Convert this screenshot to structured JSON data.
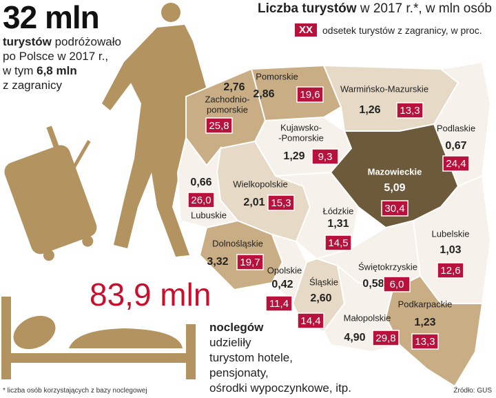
{
  "headline": "32 mln",
  "intro": {
    "line1_bold": "turystów",
    "line1_rest": "podróżowało",
    "line2": "po Polsce w 2017 r.,",
    "line3_pre": "w tym",
    "line3_bold": "6,8 mln",
    "line4": "z zagranicy"
  },
  "title": {
    "bold": "Liczba turystów",
    "rest": "w 2017 r.*, w mln osób"
  },
  "legend": {
    "box": "XX",
    "text": "odsetek turystów z zagranicy, w proc."
  },
  "regions": [
    {
      "name": [
        "Zachodnio-",
        "pomorskie"
      ],
      "tourists": "2,76",
      "foreign": "25,8",
      "color": "#c9ad84"
    },
    {
      "name": [
        "Pomorskie"
      ],
      "tourists": "2,86",
      "foreign": "19,6",
      "color": "#c9ad84"
    },
    {
      "name": [
        "Warmińsko-Mazurskie"
      ],
      "tourists": "1,26",
      "foreign": "13,3",
      "color": "#e6dac6"
    },
    {
      "name": [
        "Podlaskie"
      ],
      "tourists": "0,67",
      "foreign": "24,4",
      "color": "#f6f1ea"
    },
    {
      "name": [
        "Kujawsko-",
        "-Pomorskie"
      ],
      "tourists": "1,29",
      "foreign": "9,3",
      "color": "#f6f1ea"
    },
    {
      "name": [
        "Mazowieckie"
      ],
      "tourists": "5,09",
      "foreign": "30,4",
      "color": "#6d5a3a"
    },
    {
      "name": [
        "Wielkopolskie"
      ],
      "tourists": "2,01",
      "foreign": "15,3",
      "color": "#e6dac6"
    },
    {
      "name": [
        "Lubuskie"
      ],
      "tourists": "0,66",
      "foreign": "26,0",
      "color": "#f6f1ea"
    },
    {
      "name": [
        "Dolnośląskie"
      ],
      "tourists": "3,32",
      "foreign": "19,7",
      "color": "#c9ad84"
    },
    {
      "name": [
        "Opolskie"
      ],
      "tourists": "0,42",
      "foreign": "11,4",
      "color": "#f6f1ea"
    },
    {
      "name": [
        "Łódzkie"
      ],
      "tourists": "1,31",
      "foreign": "14,5",
      "color": "#f6f1ea"
    },
    {
      "name": [
        "Śląskie"
      ],
      "tourists": "2,60",
      "foreign": "14,4",
      "color": "#e6dac6"
    },
    {
      "name": [
        "Świętokrzyskie"
      ],
      "tourists": "0,58",
      "foreign": "6,0",
      "color": "#f6f1ea"
    },
    {
      "name": [
        "Lubelskie"
      ],
      "tourists": "1,03",
      "foreign": "12,6",
      "color": "#f6f1ea"
    },
    {
      "name": [
        "Małopolskie"
      ],
      "tourists": "4,90",
      "foreign": "29,8",
      "color": "#c9ad84"
    },
    {
      "name": [
        "Podkarpackie"
      ],
      "tourists": "1,23",
      "foreign": "13,3",
      "color": "#f6f1ea"
    }
  ],
  "nights": {
    "value": "83,9 mln",
    "lines": [
      "noclegów",
      "udzieliły",
      "turystom hotele,",
      "pensjonaty,",
      "ośrodki wypoczynkowe, itp."
    ]
  },
  "footnote": "* liczba osób korzystających z bazy noclegowej",
  "source": "Źródło: GUS"
}
